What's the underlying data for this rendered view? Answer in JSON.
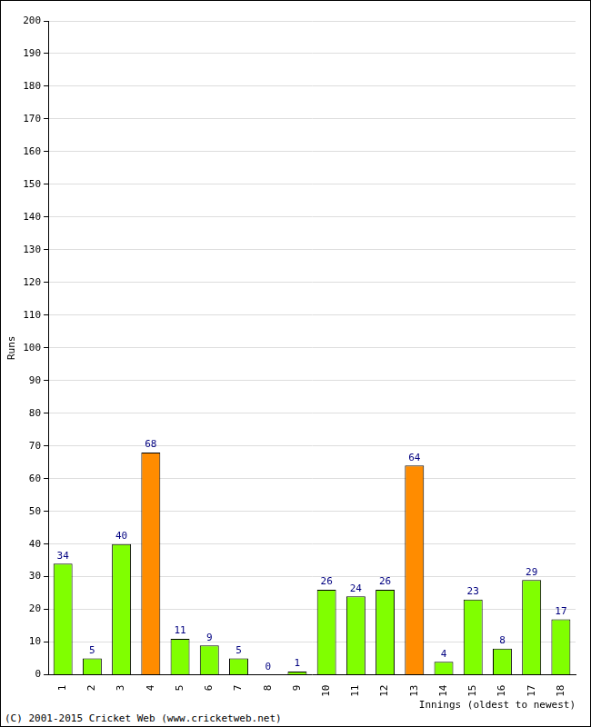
{
  "chart_data": {
    "type": "bar",
    "x_label": "Innings (oldest to newest)",
    "y_label": "Runs",
    "annotations": [
      "(C) 2001-2015 Cricket Web (www.cricketweb.net)"
    ],
    "categories": [
      "1",
      "2",
      "3",
      "4",
      "5",
      "6",
      "7",
      "8",
      "9",
      "10",
      "11",
      "12",
      "13",
      "14",
      "15",
      "16",
      "17",
      "18"
    ],
    "values": [
      34,
      5,
      40,
      68,
      11,
      9,
      5,
      0,
      1,
      26,
      24,
      26,
      64,
      4,
      23,
      8,
      29,
      17
    ],
    "colors": [
      "#80ff00",
      "#80ff00",
      "#80ff00",
      "#ff8c00",
      "#80ff00",
      "#80ff00",
      "#80ff00",
      "#80ff00",
      "#80ff00",
      "#80ff00",
      "#80ff00",
      "#80ff00",
      "#ff8c00",
      "#80ff00",
      "#80ff00",
      "#80ff00",
      "#80ff00",
      "#80ff00"
    ],
    "ylim": [
      0,
      200
    ],
    "yticks": [
      0,
      10,
      20,
      30,
      40,
      50,
      60,
      70,
      80,
      90,
      100,
      110,
      120,
      130,
      140,
      150,
      160,
      170,
      180,
      190,
      200
    ],
    "grid": true,
    "data_labels": true
  }
}
